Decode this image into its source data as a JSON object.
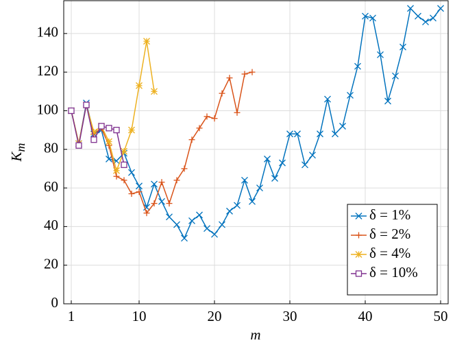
{
  "chart_data": {
    "type": "line",
    "x_label": "m",
    "y_label": [
      "K",
      "m"
    ],
    "xlim": [
      0,
      51
    ],
    "ylim": [
      0,
      157
    ],
    "xticks": [
      1,
      10,
      20,
      30,
      40,
      50
    ],
    "yticks": [
      0,
      20,
      40,
      60,
      80,
      100,
      120,
      140
    ],
    "grid": true,
    "legend": "lower right",
    "series": [
      {
        "name": "δ = 1%",
        "color": "#0072bd",
        "marker": "x",
        "x": [
          1,
          2,
          3,
          4,
          5,
          6,
          7,
          8,
          9,
          10,
          11,
          12,
          13,
          14,
          15,
          16,
          17,
          18,
          19,
          20,
          21,
          22,
          23,
          24,
          25,
          26,
          27,
          28,
          29,
          30,
          31,
          32,
          33,
          34,
          35,
          36,
          37,
          38,
          39,
          40,
          41,
          42,
          43,
          44,
          45,
          46,
          47,
          48,
          49,
          50
        ],
        "values": [
          100,
          83,
          104,
          88,
          90,
          75,
          74,
          78,
          68,
          61,
          50,
          62,
          53,
          45,
          41,
          34,
          43,
          46,
          39,
          36,
          41,
          48,
          51,
          64,
          53,
          60,
          75,
          65,
          73,
          88,
          88,
          72,
          77,
          88,
          106,
          88,
          92,
          108,
          123,
          149,
          148,
          129,
          105,
          118,
          133,
          153,
          149,
          146,
          148,
          153
        ]
      },
      {
        "name": "δ = 2%",
        "color": "#d95319",
        "marker": "+",
        "x": [
          1,
          2,
          3,
          4,
          5,
          6,
          7,
          8,
          9,
          10,
          11,
          12,
          13,
          14,
          15,
          16,
          17,
          18,
          19,
          20,
          21,
          22,
          23,
          24,
          25
        ],
        "values": [
          100,
          83,
          103,
          88,
          91,
          82,
          66,
          64,
          57,
          58,
          47,
          52,
          63,
          52,
          64,
          70,
          85,
          91,
          97,
          96,
          109,
          117,
          99,
          119,
          120
        ]
      },
      {
        "name": "δ = 4%",
        "color": "#edb120",
        "marker": "*",
        "x": [
          1,
          2,
          3,
          4,
          5,
          6,
          7,
          8,
          9,
          10,
          11,
          12
        ],
        "values": [
          100,
          83,
          103,
          89,
          92,
          84,
          69,
          79,
          90,
          113,
          136,
          110
        ]
      },
      {
        "name": "δ = 10%",
        "color": "#7e2f8e",
        "marker": "square",
        "x": [
          1,
          2,
          3,
          4,
          5,
          6,
          7,
          8
        ],
        "values": [
          100,
          82,
          103,
          85,
          92,
          91,
          90,
          72
        ]
      }
    ]
  }
}
